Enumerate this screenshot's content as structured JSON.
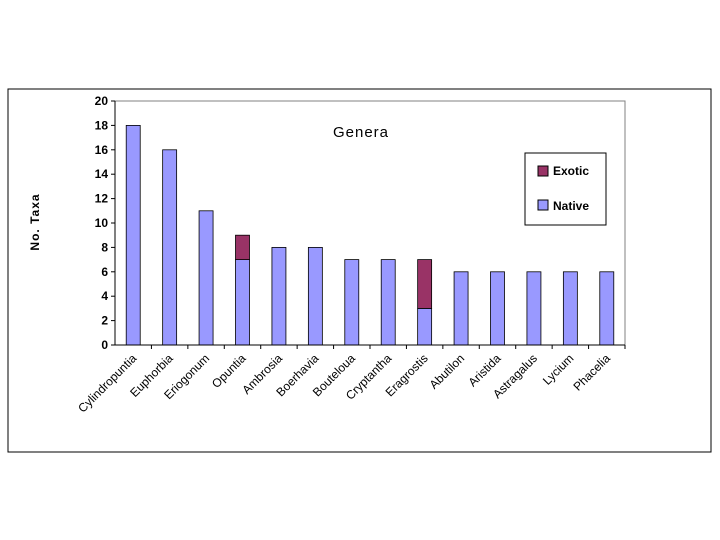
{
  "chart_data": {
    "type": "bar",
    "stacked": true,
    "title": "Genera",
    "xlabel": "",
    "ylabel": "No. Taxa",
    "ylim": [
      0,
      20
    ],
    "yticks": [
      0,
      2,
      4,
      6,
      8,
      10,
      12,
      14,
      16,
      18,
      20
    ],
    "grid": false,
    "legend_position": "top-right",
    "categories": [
      "Cylindropuntia",
      "Euphorbia",
      "Eriogonum",
      "Opuntia",
      "Ambrosia",
      "Boerhavia",
      "Bouteloua",
      "Cryptantha",
      "Eragrostis",
      "Abutilon",
      "Aristida",
      "Astragalus",
      "Lycium",
      "Phacelia"
    ],
    "series": [
      {
        "name": "Native",
        "color": "#9999ff",
        "values": [
          18,
          16,
          11,
          7,
          8,
          8,
          7,
          7,
          3,
          6,
          6,
          6,
          6,
          6
        ]
      },
      {
        "name": "Exotic",
        "color": "#993366",
        "values": [
          0,
          0,
          0,
          2,
          0,
          0,
          0,
          0,
          4,
          0,
          0,
          0,
          0,
          0
        ]
      }
    ],
    "legend": [
      {
        "name": "Exotic",
        "color": "#993366"
      },
      {
        "name": "Native",
        "color": "#9999ff"
      }
    ]
  }
}
